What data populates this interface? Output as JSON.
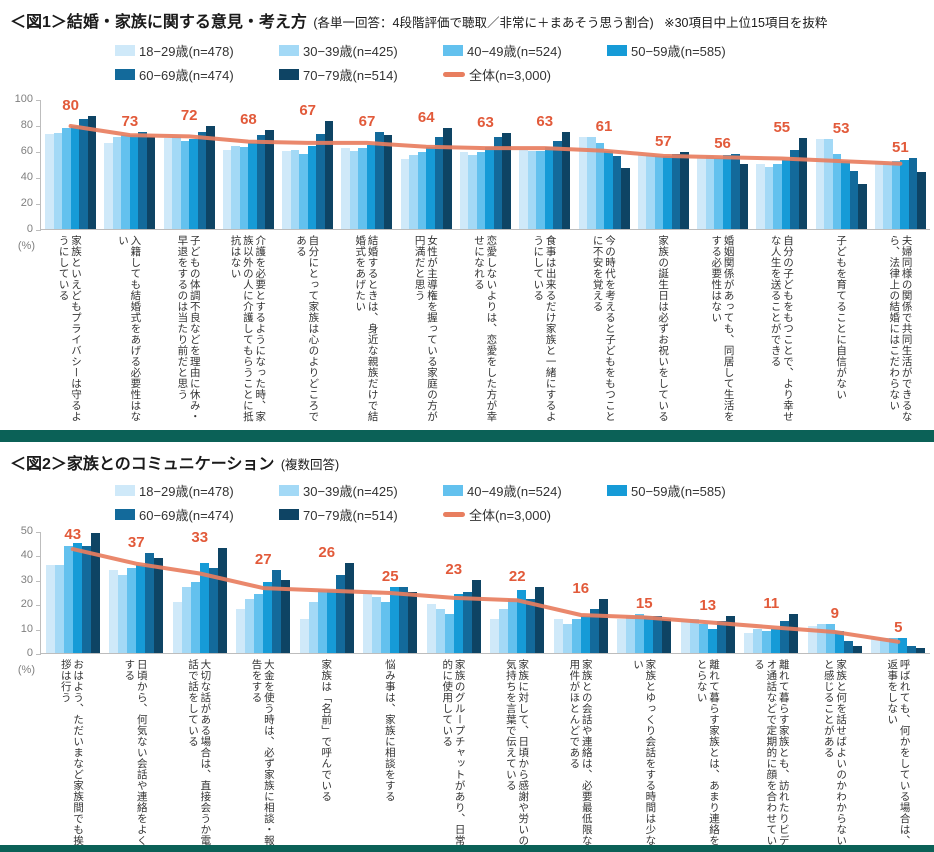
{
  "colors": {
    "age_18_29": "#cfe9f9",
    "age_30_39": "#a3d9f6",
    "age_40_49": "#63c1ee",
    "age_50_59": "#169bd7",
    "age_60_69": "#136a9b",
    "age_70_79": "#0e4464",
    "total_line": "#e87e5f",
    "point_label": "#e25a3a",
    "divider_teal": "#0b6157",
    "axis": "#bdbdbd",
    "tick_text": "#7f7f7f"
  },
  "legend": {
    "items": [
      {
        "label": "18−29歳(n=478)",
        "color_key": "age_18_29"
      },
      {
        "label": "30−39歳(n=425)",
        "color_key": "age_30_39"
      },
      {
        "label": "40−49歳(n=524)",
        "color_key": "age_40_49"
      },
      {
        "label": "50−59歳(n=585)",
        "color_key": "age_50_59"
      },
      {
        "label": "60−69歳(n=474)",
        "color_key": "age_60_69"
      },
      {
        "label": "70−79歳(n=514)",
        "color_key": "age_70_79"
      }
    ],
    "line_item": {
      "label": "全体(n=3,000)",
      "color_key": "total_line"
    }
  },
  "fig1": {
    "prefix": "＜図1＞",
    "title": "結婚・家族に関する意見・考え方",
    "note": "(各単一回答：4段階評価で聴取／非常に＋まあそう思う割合)",
    "extra": "※30項目中上位15項目を抜粋",
    "unit": "(%)"
  },
  "fig2": {
    "prefix": "＜図2＞",
    "title": "家族とのコミュニケーション",
    "note": "(複数回答)",
    "extra": "",
    "unit": "(%)"
  },
  "chart_data": [
    {
      "type": "bar",
      "title": "結婚・家族に関する意見・考え方",
      "ylabel": "(%)",
      "ylim": [
        0,
        100
      ],
      "yticks": [
        0,
        20,
        40,
        60,
        80,
        100
      ],
      "grid": false,
      "legend_position": "top",
      "categories": [
        "家族といえどもプライバシーは守るようにしている",
        "入籍しても結婚式をあげる必要性はない",
        "子どもの体調不良などを理由に休み・早退をするのは当たり前だと思う",
        "介護を必要とするようになった時、家族以外の人に介護してもらうことに抵抗はない",
        "自分にとって家族は心のよりどころである",
        "結婚するときは、身近な親族だけで結婚式をあげたい",
        "女性が主導権を握っている家庭の方が円満だと思う",
        "恋愛しないよりは、恋愛をした方が幸せになれる",
        "食事は出来るだけ家族と一緒にするようにしている",
        "今の時代を考えると子どもをもつことに不安を覚える",
        "家族の誕生日は必ずお祝いをしている",
        "婚姻関係があっても、同居して生活をする必要性はない",
        "自分の子どもをもつことで、より幸せな人生を送ることができる",
        "子どもを育てることに自信がない",
        "夫婦同様の関係で共同生活ができるなら、法律上の結婚にはこだわらない"
      ],
      "series": [
        {
          "name": "18−29歳(n=478)",
          "color_key": "age_18_29",
          "values": [
            73,
            66,
            70,
            61,
            60,
            62,
            54,
            59,
            61,
            71,
            57,
            55,
            50,
            69,
            52
          ]
        },
        {
          "name": "30−39歳(n=425)",
          "color_key": "age_30_39",
          "values": [
            74,
            71,
            71,
            64,
            61,
            60,
            57,
            57,
            60,
            71,
            57,
            56,
            48,
            69,
            51
          ]
        },
        {
          "name": "40−49歳(n=524)",
          "color_key": "age_40_49",
          "values": [
            78,
            72,
            68,
            63,
            58,
            62,
            59,
            59,
            60,
            66,
            56,
            55,
            50,
            58,
            52
          ]
        },
        {
          "name": "50−59歳(n=585)",
          "color_key": "age_50_59",
          "values": [
            79,
            72,
            69,
            66,
            64,
            65,
            63,
            63,
            63,
            60,
            56,
            57,
            53,
            52,
            53
          ]
        },
        {
          "name": "60−69歳(n=474)",
          "color_key": "age_60_69",
          "values": [
            85,
            75,
            75,
            72,
            73,
            75,
            71,
            71,
            68,
            56,
            58,
            58,
            61,
            45,
            55
          ]
        },
        {
          "name": "70−79歳(n=514)",
          "color_key": "age_70_79",
          "values": [
            87,
            71,
            79,
            76,
            83,
            72,
            78,
            74,
            75,
            47,
            59,
            50,
            70,
            35,
            44
          ]
        }
      ],
      "line": {
        "name": "全体(n=3,000)",
        "color_key": "total_line",
        "values": [
          80,
          73,
          72,
          68,
          67,
          67,
          64,
          63,
          63,
          61,
          57,
          56,
          55,
          53,
          51
        ]
      },
      "point_labels": [
        80,
        73,
        72,
        68,
        67,
        67,
        64,
        63,
        63,
        61,
        57,
        56,
        55,
        53,
        51
      ]
    },
    {
      "type": "bar",
      "title": "家族とのコミュニケーション",
      "ylabel": "(%)",
      "ylim": [
        0,
        50
      ],
      "yticks": [
        0,
        10,
        20,
        30,
        40,
        50
      ],
      "grid": false,
      "legend_position": "top",
      "categories": [
        "おはよう、ただいまなど家族間でも挨拶は行う",
        "日頃から、何気ない会話や連絡をよくする",
        "大切な話がある場合は、直接会うか電話で話をしている",
        "大金を使う時は、必ず家族に相談・報告をする",
        "家族は「名前」で呼んでいる",
        "悩み事は、家族に相談をする",
        "家族のグループチャットがあり、日常的に使用している",
        "家族に対して、日頃から感謝や労いの気持ちを言葉で伝えている",
        "家族との会話や連絡は、必要最低限な用件がほとんどである",
        "家族とゆっくり会話をする時間は少ない",
        "離れて暮らす家族とは、あまり連絡をとらない",
        "離れて暮らす家族とも、訪れたりビデオ通話などで定期的に顔を合わせている",
        "家族と何を話せばよいのかわからないと感じることがある",
        "呼ばれても、何かをしている場合は、返事をしない"
      ],
      "series": [
        {
          "name": "18−29歳(n=478)",
          "color_key": "age_18_29",
          "values": [
            36,
            34,
            21,
            18,
            14,
            24,
            20,
            14,
            14,
            14,
            13,
            8,
            11,
            6
          ]
        },
        {
          "name": "30−39歳(n=425)",
          "color_key": "age_30_39",
          "values": [
            36,
            32,
            27,
            22,
            21,
            23,
            18,
            18,
            12,
            15,
            14,
            10,
            12,
            6
          ]
        },
        {
          "name": "40−49歳(n=524)",
          "color_key": "age_40_49",
          "values": [
            44,
            35,
            29,
            24,
            26,
            21,
            16,
            22,
            14,
            16,
            12,
            9,
            12,
            6
          ]
        },
        {
          "name": "50−59歳(n=585)",
          "color_key": "age_50_59",
          "values": [
            45,
            36,
            37,
            29,
            26,
            27,
            24,
            26,
            15,
            15,
            10,
            10,
            9,
            6
          ]
        },
        {
          "name": "60−69歳(n=474)",
          "color_key": "age_60_69",
          "values": [
            44,
            41,
            35,
            34,
            32,
            27,
            25,
            22,
            18,
            15,
            13,
            13,
            5,
            3
          ]
        },
        {
          "name": "70−79歳(n=514)",
          "color_key": "age_70_79",
          "values": [
            49,
            39,
            43,
            30,
            37,
            25,
            30,
            27,
            22,
            14,
            15,
            16,
            3,
            2
          ]
        }
      ],
      "line": {
        "name": "全体(n=3,000)",
        "color_key": "total_line",
        "values": [
          43,
          37,
          33,
          27,
          26,
          25,
          23,
          22,
          16,
          15,
          13,
          11,
          9,
          5
        ]
      },
      "point_labels": [
        43,
        37,
        33,
        27,
        26,
        25,
        23,
        22,
        16,
        15,
        13,
        11,
        9,
        5
      ]
    }
  ]
}
